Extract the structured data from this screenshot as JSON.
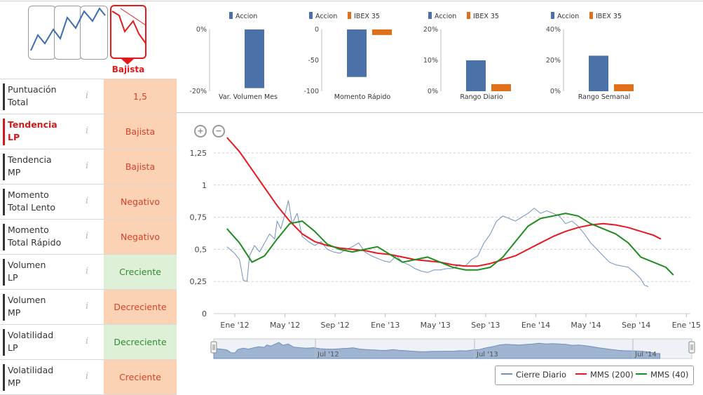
{
  "trend": {
    "label": "Bajista"
  },
  "indicators": [
    {
      "label": "Puntuación\nTotal",
      "value": "1,5",
      "tone": "neg",
      "highlight": false
    },
    {
      "label": "Tendencia\nLP",
      "value": "Bajista",
      "tone": "neg",
      "highlight": true
    },
    {
      "label": "Tendencia\nMP",
      "value": "Bajista",
      "tone": "neg",
      "highlight": false
    },
    {
      "label": "Momento\nTotal Lento",
      "value": "Negativo",
      "tone": "neg",
      "highlight": false
    },
    {
      "label": "Momento\nTotal Rápido",
      "value": "Negativo",
      "tone": "neg",
      "highlight": false
    },
    {
      "label": "Volumen\nLP",
      "value": "Creciente",
      "tone": "pos",
      "highlight": false
    },
    {
      "label": "Volumen\nMP",
      "value": "Decreciente",
      "tone": "neg",
      "highlight": false
    },
    {
      "label": "Volatilidad\nLP",
      "value": "Decreciente",
      "tone": "pos",
      "highlight": false
    },
    {
      "label": "Volatilidad\nMP",
      "value": "Creciente",
      "tone": "neg",
      "highlight": false
    }
  ],
  "info_icon": "i",
  "colors": {
    "accion": "#4a72a8",
    "ibex": "#e06f1a",
    "cierre": "#6f92bd",
    "mms200": "#e8181f",
    "mms40": "#1e8c1e"
  },
  "chart_data": [
    {
      "type": "bar",
      "title": "Var. Volumen Mes",
      "series": [
        {
          "name": "Accion",
          "values": [
            -19
          ]
        }
      ],
      "ylim": [
        -20,
        0
      ],
      "yticks": [
        "0%",
        "-20%"
      ]
    },
    {
      "type": "bar",
      "title": "Momento Rápido",
      "series": [
        {
          "name": "Accion",
          "values": [
            -77
          ]
        },
        {
          "name": "IBEX 35",
          "values": [
            -9
          ]
        }
      ],
      "ylim": [
        -100,
        0
      ],
      "yticks": [
        "0",
        "-50",
        "-100"
      ]
    },
    {
      "type": "bar",
      "title": "Rango Diario",
      "series": [
        {
          "name": "Accion",
          "values": [
            10
          ]
        },
        {
          "name": "IBEX 35",
          "values": [
            2.3
          ]
        }
      ],
      "ylim": [
        0,
        20
      ],
      "yticks": [
        "20%",
        "10%",
        "0%"
      ]
    },
    {
      "type": "bar",
      "title": "Rango Semanal",
      "series": [
        {
          "name": "Accion",
          "values": [
            23
          ]
        },
        {
          "name": "IBEX 35",
          "values": [
            4.5
          ]
        }
      ],
      "ylim": [
        0,
        40
      ],
      "yticks": [
        "40%",
        "20%",
        "0%"
      ]
    },
    {
      "type": "line",
      "title": "",
      "x_labels": [
        "Ene '12",
        "May '12",
        "Sep '12",
        "Ene '13",
        "May '13",
        "Sep '13",
        "Ene '14",
        "May '14",
        "Sep '14",
        "Ene '15"
      ],
      "y_labels": [
        "1,25",
        "1",
        "0,75",
        "0,5",
        "0,25",
        "0"
      ],
      "ylim": [
        0,
        1.4
      ],
      "x_range_months": [
        0,
        38
      ],
      "series": [
        {
          "name": "Cierre Diario",
          "points": [
            [
              0,
              0.52
            ],
            [
              0.6,
              0.47
            ],
            [
              1,
              0.42
            ],
            [
              1.3,
              0.26
            ],
            [
              1.6,
              0.25
            ],
            [
              1.8,
              0.45
            ],
            [
              2.2,
              0.53
            ],
            [
              2.6,
              0.48
            ],
            [
              3,
              0.55
            ],
            [
              3.4,
              0.62
            ],
            [
              3.8,
              0.58
            ],
            [
              4,
              0.72
            ],
            [
              4.3,
              0.66
            ],
            [
              4.7,
              0.8
            ],
            [
              4.9,
              0.88
            ],
            [
              5.2,
              0.7
            ],
            [
              5.6,
              0.78
            ],
            [
              6,
              0.6
            ],
            [
              6.5,
              0.56
            ],
            [
              7,
              0.53
            ],
            [
              7.5,
              0.56
            ],
            [
              8,
              0.5
            ],
            [
              8.5,
              0.48
            ],
            [
              9,
              0.47
            ],
            [
              9.5,
              0.5
            ],
            [
              10,
              0.52
            ],
            [
              10.5,
              0.55
            ],
            [
              11,
              0.48
            ],
            [
              11.5,
              0.45
            ],
            [
              12,
              0.43
            ],
            [
              12.5,
              0.41
            ],
            [
              13,
              0.4
            ],
            [
              13.5,
              0.45
            ],
            [
              14,
              0.4
            ],
            [
              14.5,
              0.38
            ],
            [
              15,
              0.35
            ],
            [
              15.5,
              0.33
            ],
            [
              16,
              0.32
            ],
            [
              16.5,
              0.34
            ],
            [
              17,
              0.34
            ],
            [
              17.5,
              0.35
            ],
            [
              18,
              0.35
            ],
            [
              18.5,
              0.38
            ],
            [
              19,
              0.37
            ],
            [
              19.5,
              0.42
            ],
            [
              20,
              0.45
            ],
            [
              20.5,
              0.55
            ],
            [
              21,
              0.62
            ],
            [
              21.5,
              0.72
            ],
            [
              22,
              0.76
            ],
            [
              22.5,
              0.74
            ],
            [
              23,
              0.72
            ],
            [
              23.5,
              0.75
            ],
            [
              24,
              0.78
            ],
            [
              24.5,
              0.82
            ],
            [
              25,
              0.78
            ],
            [
              25.5,
              0.8
            ],
            [
              26,
              0.78
            ],
            [
              26.5,
              0.76
            ],
            [
              27,
              0.7
            ],
            [
              27.5,
              0.72
            ],
            [
              28,
              0.68
            ],
            [
              28.5,
              0.62
            ],
            [
              29,
              0.55
            ],
            [
              29.5,
              0.5
            ],
            [
              30,
              0.45
            ],
            [
              30.5,
              0.4
            ],
            [
              31,
              0.38
            ],
            [
              31.5,
              0.37
            ],
            [
              32,
              0.36
            ],
            [
              32.5,
              0.32
            ],
            [
              33,
              0.27
            ],
            [
              33.3,
              0.22
            ],
            [
              33.6,
              0.21
            ]
          ]
        },
        {
          "name": "MMS (200)",
          "points": [
            [
              0,
              1.37
            ],
            [
              1,
              1.26
            ],
            [
              2,
              1.12
            ],
            [
              3,
              0.98
            ],
            [
              4,
              0.84
            ],
            [
              5,
              0.72
            ],
            [
              6,
              0.62
            ],
            [
              7,
              0.56
            ],
            [
              8,
              0.53
            ],
            [
              9,
              0.51
            ],
            [
              10,
              0.5
            ],
            [
              11,
              0.49
            ],
            [
              12,
              0.47
            ],
            [
              13,
              0.46
            ],
            [
              14,
              0.44
            ],
            [
              15,
              0.42
            ],
            [
              16,
              0.41
            ],
            [
              17,
              0.4
            ],
            [
              18,
              0.38
            ],
            [
              19,
              0.37
            ],
            [
              20,
              0.37
            ],
            [
              21,
              0.39
            ],
            [
              22,
              0.42
            ],
            [
              23,
              0.45
            ],
            [
              24,
              0.5
            ],
            [
              25,
              0.55
            ],
            [
              26,
              0.6
            ],
            [
              27,
              0.64
            ],
            [
              28,
              0.67
            ],
            [
              29,
              0.69
            ],
            [
              30,
              0.7
            ],
            [
              31,
              0.69
            ],
            [
              32,
              0.67
            ],
            [
              33,
              0.64
            ],
            [
              34,
              0.61
            ],
            [
              34.6,
              0.58
            ]
          ]
        },
        {
          "name": "MMS (40)",
          "points": [
            [
              0,
              0.66
            ],
            [
              1,
              0.55
            ],
            [
              2,
              0.4
            ],
            [
              3,
              0.45
            ],
            [
              4,
              0.58
            ],
            [
              5,
              0.7
            ],
            [
              6,
              0.72
            ],
            [
              7,
              0.64
            ],
            [
              8,
              0.54
            ],
            [
              9,
              0.5
            ],
            [
              10,
              0.48
            ],
            [
              11,
              0.5
            ],
            [
              12,
              0.52
            ],
            [
              13,
              0.46
            ],
            [
              14,
              0.4
            ],
            [
              15,
              0.42
            ],
            [
              16,
              0.44
            ],
            [
              17,
              0.4
            ],
            [
              18,
              0.36
            ],
            [
              19,
              0.34
            ],
            [
              20,
              0.34
            ],
            [
              21,
              0.36
            ],
            [
              22,
              0.44
            ],
            [
              23,
              0.56
            ],
            [
              24,
              0.68
            ],
            [
              25,
              0.74
            ],
            [
              26,
              0.76
            ],
            [
              27,
              0.78
            ],
            [
              28,
              0.76
            ],
            [
              29,
              0.7
            ],
            [
              30,
              0.66
            ],
            [
              31,
              0.62
            ],
            [
              32,
              0.55
            ],
            [
              33,
              0.44
            ],
            [
              34,
              0.4
            ],
            [
              35,
              0.36
            ],
            [
              35.6,
              0.3
            ]
          ]
        }
      ]
    }
  ],
  "navigator": {
    "labels": [
      "Jul '12",
      "Jul '13",
      "Jul '14"
    ]
  },
  "legend": {
    "items": [
      "Cierre Diario",
      "MMS (200)",
      "MMS (40)"
    ]
  },
  "zoom": {
    "in": "+",
    "out": "−"
  }
}
